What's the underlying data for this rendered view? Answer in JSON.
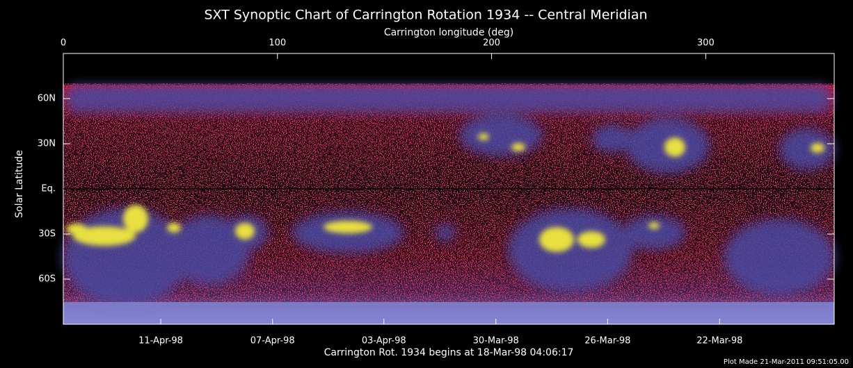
{
  "chart_data": {
    "type": "image",
    "title": "SXT Synoptic Chart of Carrington Rotation 1934 -- Central Meridian",
    "xlabel": "Carrington longitude (deg)",
    "ylabel": "Solar Latitude",
    "xlim": [
      0,
      360
    ],
    "xticks": [
      0,
      100,
      200,
      300
    ],
    "ylim": [
      -90,
      90
    ],
    "yticks": [
      {
        "value": 60,
        "label": "60N"
      },
      {
        "value": 30,
        "label": "30N"
      },
      {
        "value": 0,
        "label": "Eq."
      },
      {
        "value": -30,
        "label": "30S"
      },
      {
        "value": -60,
        "label": "60S"
      }
    ],
    "x2ticks": [
      {
        "value": 45.5,
        "label": "11-Apr-98"
      },
      {
        "value": 97.7,
        "label": "07-Apr-98"
      },
      {
        "value": 149.7,
        "label": "03-Apr-98"
      },
      {
        "value": 202,
        "label": "30-Mar-98"
      },
      {
        "value": 254.2,
        "label": "26-Mar-98"
      },
      {
        "value": 306.5,
        "label": "22-Mar-98"
      }
    ],
    "caption": "Carrington Rot. 1934 begins at 18-Mar-98 04:06:17",
    "footnote": "Plot Made 21-Mar-2011 09:51:05.00"
  }
}
